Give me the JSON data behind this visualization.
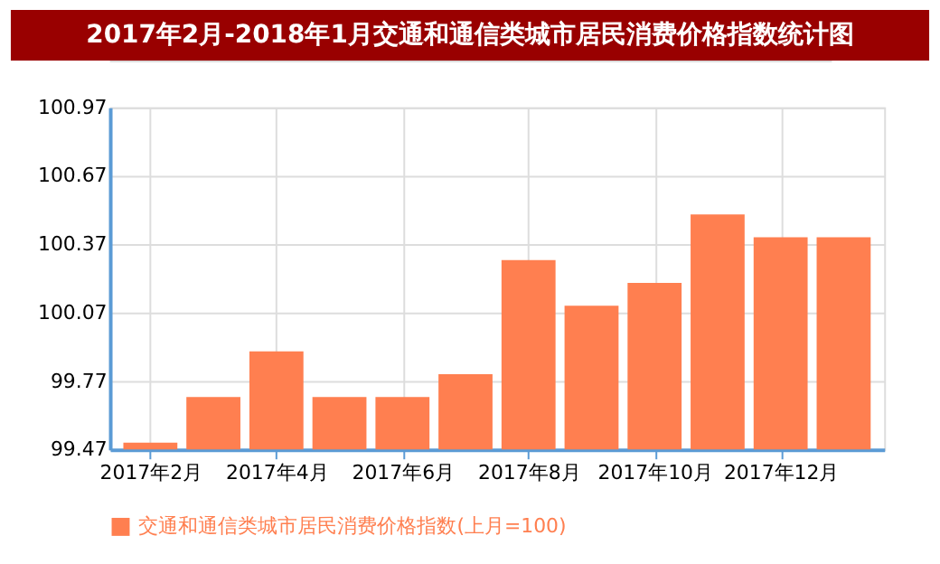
{
  "chart_data": {
    "type": "bar",
    "title": "2017年2月-2018年1月交通和通信类城市居民消费价格指数统计图",
    "categories": [
      "2017年2月",
      null,
      "2017年4月",
      null,
      "2017年6月",
      null,
      "2017年8月",
      null,
      "2017年10月",
      null,
      "2017年12月",
      null
    ],
    "series": [
      {
        "name": "交通和通信类城市居民消费价格指数(上月=100)",
        "color": "#ff7f50",
        "values": [
          99.5,
          99.7,
          99.9,
          99.7,
          99.7,
          99.8,
          100.3,
          100.1,
          100.2,
          100.5,
          100.4,
          100.4
        ]
      }
    ],
    "ylim": [
      99.47,
      100.97
    ],
    "yticks": [
      99.47,
      99.77,
      100.07,
      100.37,
      100.67,
      100.97
    ],
    "grid": true,
    "legend": "bottom"
  }
}
